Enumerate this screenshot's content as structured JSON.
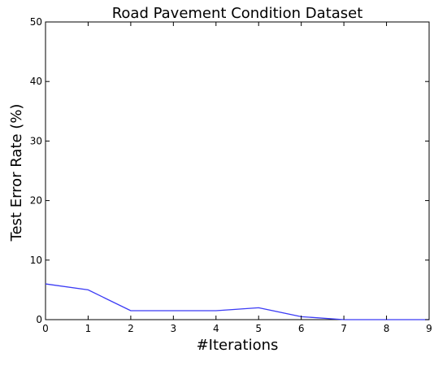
{
  "chart_data": {
    "type": "line",
    "title": "Road Pavement Condition Dataset",
    "xlabel": "#Iterations",
    "ylabel": "Test Error Rate (%)",
    "xlim": [
      0,
      9
    ],
    "ylim": [
      0,
      50
    ],
    "x_ticks": [
      0,
      1,
      2,
      3,
      4,
      5,
      6,
      7,
      8,
      9
    ],
    "y_ticks": [
      0,
      10,
      20,
      30,
      40,
      50
    ],
    "grid": false,
    "series": [
      {
        "x": [
          0,
          1,
          2,
          3,
          4,
          5,
          6,
          7,
          8,
          9
        ],
        "values": [
          6,
          5,
          1.5,
          1.5,
          1.5,
          2,
          0.5,
          0,
          0,
          0
        ],
        "color": "#3b3bf5"
      }
    ]
  }
}
